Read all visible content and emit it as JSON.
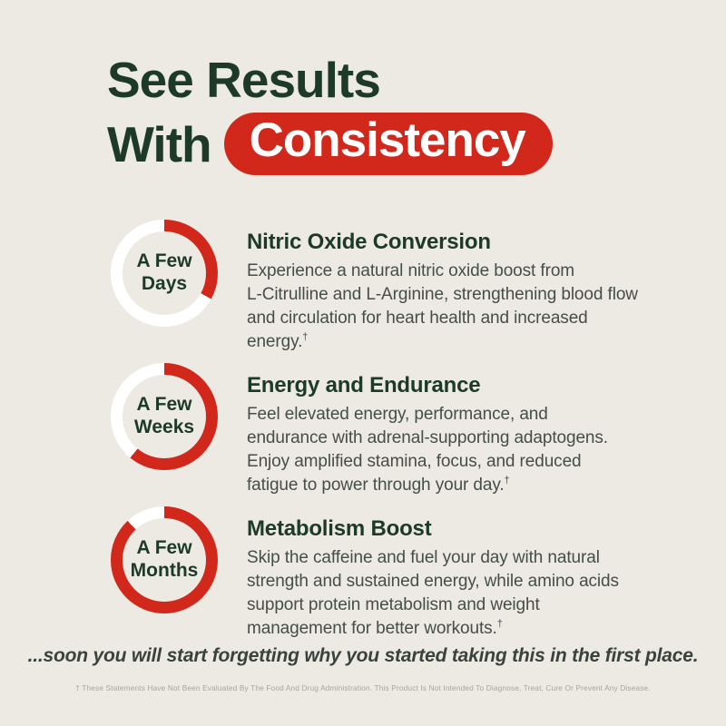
{
  "page": {
    "background_color": "#ECEAE3",
    "accent_red": "#D1281B",
    "accent_green": "#1D3927",
    "ring_track_color": "#FFFFFF"
  },
  "title": {
    "line1": "See Results",
    "line2_prefix": "With",
    "line2_highlight": "Consistency"
  },
  "sections": [
    {
      "duration_label": "A Few\nDays",
      "progress_percent": 33,
      "heading": "Nitric Oxide Conversion",
      "body": "Experience a natural nitric oxide boost from\nL-Citrulline and L-Arginine, strengthening blood flow\nand circulation for heart health and increased\nenergy.",
      "footnote_marker": "†"
    },
    {
      "duration_label": "A Few\nWeeks",
      "progress_percent": 61,
      "heading": "Energy and Endurance",
      "body": "Feel elevated energy, performance, and\nendurance with adrenal-supporting adaptogens.\nEnjoy amplified stamina, focus, and reduced\nfatigue to power through your day.",
      "footnote_marker": "†"
    },
    {
      "duration_label": "A Few\nMonths",
      "progress_percent": 88,
      "heading": "Metabolism Boost",
      "body": "Skip the caffeine and fuel your day with natural\nstrength and sustained energy, while amino acids\nsupport protein metabolism and weight\nmanagement for better workouts.",
      "footnote_marker": "†"
    }
  ],
  "footer": {
    "tagline": "...soon you will start forgetting why you started taking this in the first place."
  },
  "disclaimer": "† These Statements Have Not Been Evaluated By The Food And Drug Administration. This Product Is Not Intended To Diagnose, Treat, Cure Or Prevent Any Disease."
}
